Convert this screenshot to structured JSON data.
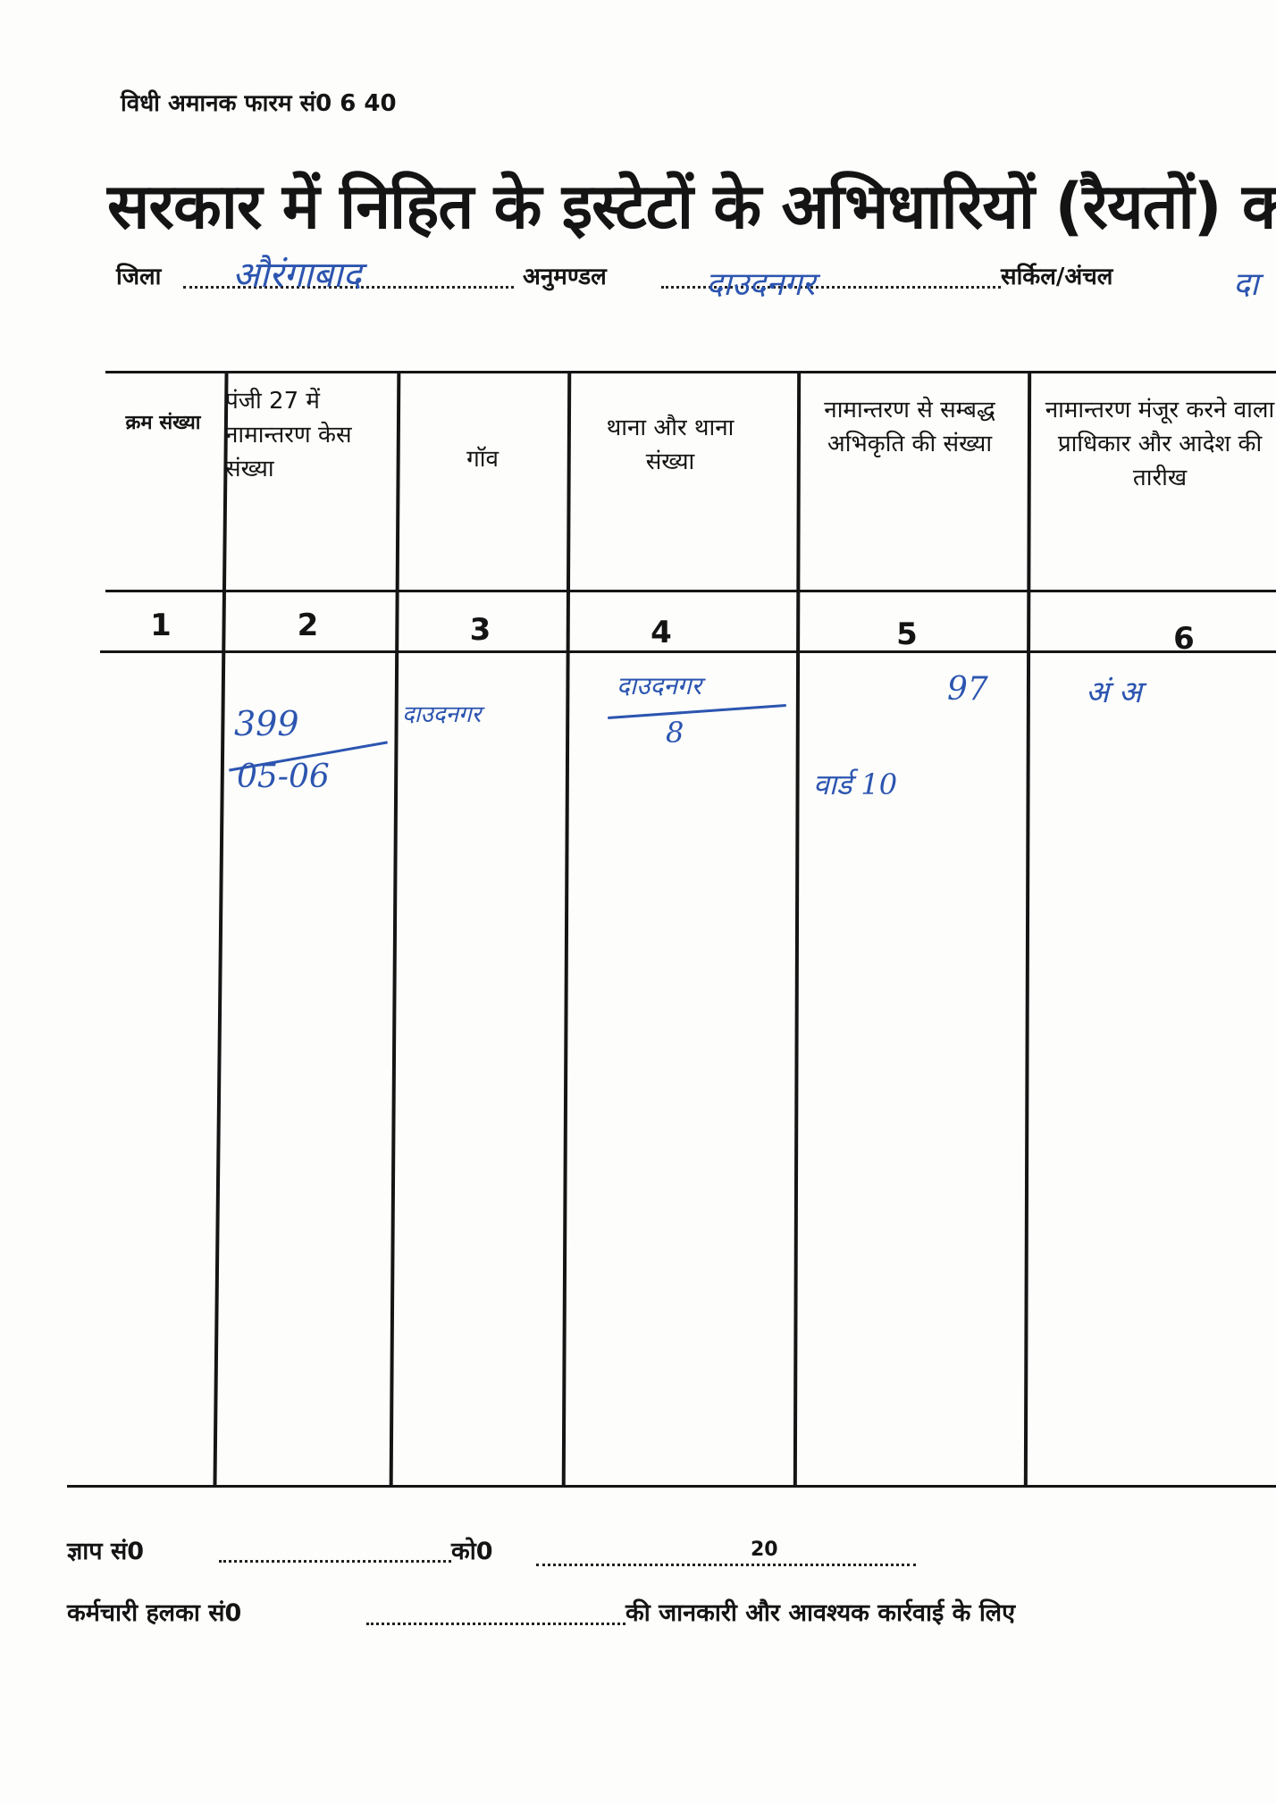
{
  "form_number": "विधी अमानक फारम सं0 6 40",
  "title": "सरकार में निहित के इस्टेटों के अभिधारियों (रैयतों) क",
  "meta": {
    "district_label": "जिला",
    "district_value": "औरंगाबाद",
    "subdivision_label": "अनुमण्डल",
    "subdivision_value": "दाउदनगर",
    "circle_label": "सर्किल/अंचल",
    "circle_value": "दा"
  },
  "table": {
    "headers": [
      "क्रम संख्या",
      "पंजी 27 में नामान्तरण केस संख्या",
      "गॉव",
      "थाना और थाना संख्या",
      "नामान्तरण से सम्बद्ध अभिकृति की संख्या",
      "नामान्तरण मंजूर करने वाला प्राधिकार और आदेश की तारीख"
    ],
    "column_numbers": [
      "1",
      "2",
      "3",
      "4",
      "5",
      "6"
    ],
    "row": {
      "case_number": "399",
      "case_year": "05-06",
      "village": "दाउदनगर",
      "thana": "दाउदनगर",
      "thana_number": "8",
      "holding_number": "97",
      "ward": "वार्ड 10",
      "authority": "अं अ"
    }
  },
  "footer": {
    "memo_label": "ज्ञाप सं0",
    "date_label": "को0",
    "year": "20",
    "line2_label": "कर्मचारी हलका सं0",
    "line2_text": "की जानकारी और आवश्यक कार्रवाई के लिए"
  }
}
